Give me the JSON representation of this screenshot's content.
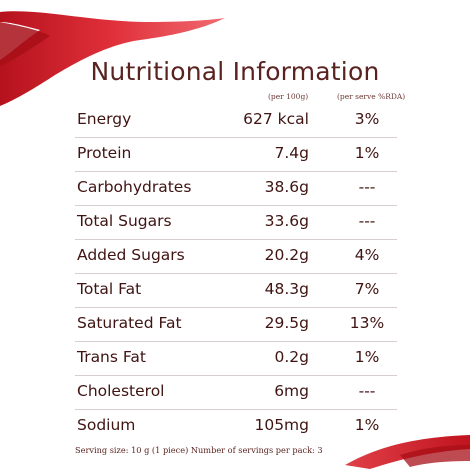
{
  "title": "Nutritional Information",
  "columns": {
    "per_100g": "(per 100g)",
    "per_serve": "(per serve %RDA)"
  },
  "rows": [
    {
      "nutrient": "Energy",
      "per_100g": "627 kcal",
      "rda": "3%"
    },
    {
      "nutrient": "Protein",
      "per_100g": "7.4g",
      "rda": "1%"
    },
    {
      "nutrient": "Carbohydrates",
      "per_100g": "38.6g",
      "rda": "---"
    },
    {
      "nutrient": "Total Sugars",
      "per_100g": "33.6g",
      "rda": "---"
    },
    {
      "nutrient": "Added Sugars",
      "per_100g": "20.2g",
      "rda": "4%"
    },
    {
      "nutrient": "Total Fat",
      "per_100g": "48.3g",
      "rda": "7%"
    },
    {
      "nutrient": "Saturated Fat",
      "per_100g": "29.5g",
      "rda": "13%"
    },
    {
      "nutrient": "Trans Fat",
      "per_100g": "0.2g",
      "rda": "1%"
    },
    {
      "nutrient": "Cholesterol",
      "per_100g": "6mg",
      "rda": "---"
    },
    {
      "nutrient": "Sodium",
      "per_100g": "105mg",
      "rda": "1%"
    }
  ],
  "footer": "Serving size: 10 g (1 piece) Number of servings per pack: 3",
  "colors": {
    "ribbon": "#d4202c",
    "text": "#5a2320"
  }
}
